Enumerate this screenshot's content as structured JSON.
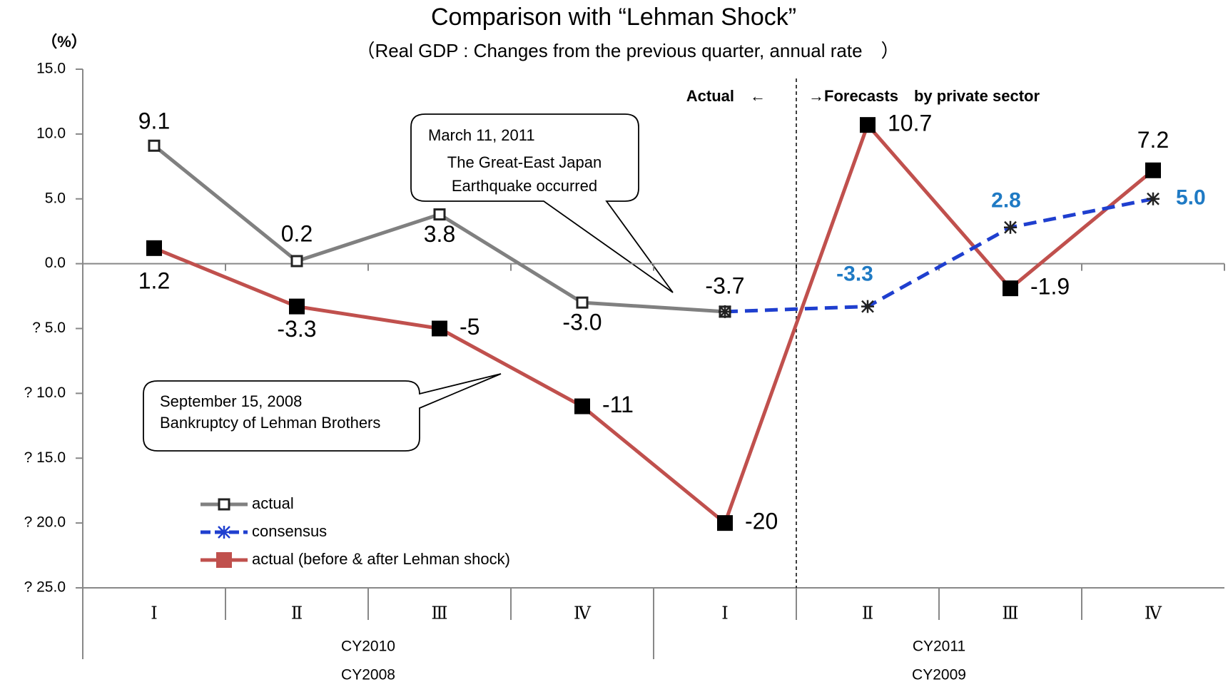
{
  "chart_data": {
    "type": "line",
    "title": "Comparison with “Lehman Shock”",
    "subtitle": "（Real GDP : Changes from the previous quarter, annual rate　）",
    "y_label": "（%）",
    "categories": [
      "Ⅰ",
      "Ⅱ",
      "Ⅲ",
      "Ⅳ",
      "Ⅰ",
      "Ⅱ",
      "Ⅲ",
      "Ⅳ"
    ],
    "groups": [
      {
        "labels": [
          "CY2010",
          "CY2008"
        ],
        "span": 4
      },
      {
        "labels": [
          "CY2011",
          "CY2009"
        ],
        "span": 4
      }
    ],
    "series": [
      {
        "name": "actual (before & after Lehman shock)",
        "color": "#c0504d",
        "marker": "square-filled",
        "dash": false,
        "values": [
          1.2,
          -3.3,
          -5,
          -11,
          -20,
          10.7,
          -1.9,
          7.2
        ],
        "value_labels": [
          "1.2",
          "-3.3",
          "-5",
          "-11",
          "-20",
          "10.7",
          "-1.9",
          "7.2"
        ]
      },
      {
        "name": "actual",
        "color": "#808080",
        "marker": "square-open",
        "dash": false,
        "values": [
          9.1,
          0.2,
          3.8,
          -3.0,
          -3.7,
          null,
          null,
          null
        ],
        "value_labels": [
          "9.1",
          "0.2",
          "3.8",
          "-3.0",
          "-3.7",
          null,
          null,
          null
        ]
      },
      {
        "name": "consensus",
        "color": "#1f3fcf",
        "marker": "asterisk",
        "dash": true,
        "values": [
          null,
          null,
          null,
          null,
          -3.7,
          -3.3,
          2.8,
          5.0
        ],
        "value_labels": [
          null,
          null,
          null,
          null,
          null,
          "-3.3",
          "2.8",
          "5.0"
        ],
        "label_color": "#1f7ac4"
      }
    ],
    "ylim": [
      -25,
      15
    ],
    "yticks": [
      {
        "value": 15,
        "label": "15.0"
      },
      {
        "value": 10,
        "label": "10.0"
      },
      {
        "value": 5,
        "label": "5.0"
      },
      {
        "value": 0,
        "label": "0.0"
      },
      {
        "value": -5,
        "label": "? 5.0"
      },
      {
        "value": -10,
        "label": "? 10.0"
      },
      {
        "value": -15,
        "label": "? 15.0"
      },
      {
        "value": -20,
        "label": "? 20.0"
      },
      {
        "value": -25,
        "label": "? 25.0"
      }
    ],
    "divider_after": 4,
    "annotations": {
      "actual": "Actual　←",
      "forecasts": "→Forecasts　by private sector",
      "earthquake": [
        "March 11, 2011",
        "The Great-East Japan",
        "Earthquake occurred"
      ],
      "lehman": [
        "September 15, 2008",
        "Bankruptcy of Lehman Brothers"
      ]
    }
  }
}
